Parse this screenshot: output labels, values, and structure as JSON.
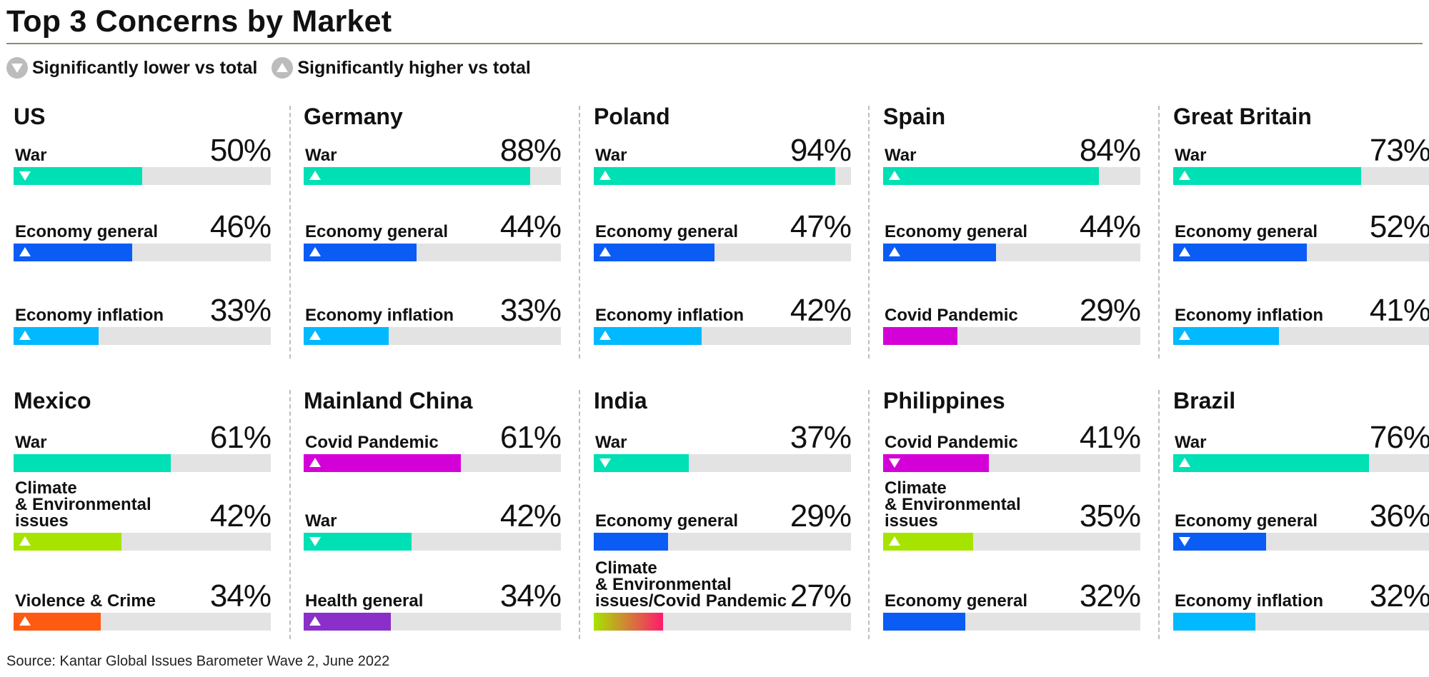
{
  "title": "Top 3 Concerns by Market",
  "legend": {
    "lower_label": "Significantly lower vs total",
    "higher_label": "Significantly higher vs total"
  },
  "source": "Source: Kantar Global Issues Barometer Wave 2, June 2022",
  "colors": {
    "war": "#00e0b5",
    "economy_general": "#0a5cf5",
    "economy_inflation": "#00b9ff",
    "covid": "#d400d8",
    "climate": "#a6e400",
    "violence": "#ff5a12",
    "health": "#8a2fc9",
    "track": "#e3e3e3",
    "icon_grey": "#bcbcbc"
  },
  "chart_data": {
    "type": "bar",
    "title": "Top 3 Concerns by Market",
    "xlim": [
      0,
      100
    ],
    "unit": "%",
    "legend": [
      "Significantly lower vs total",
      "Significantly higher vs total"
    ],
    "markets": [
      {
        "name": "US",
        "items": [
          {
            "label": "War",
            "value": 50,
            "display": "50%",
            "color": "#00e0b5",
            "marker": "down"
          },
          {
            "label": "Economy general",
            "value": 46,
            "display": "46%",
            "color": "#0a5cf5",
            "marker": "up"
          },
          {
            "label": "Economy inflation",
            "value": 33,
            "display": "33%",
            "color": "#00b9ff",
            "marker": "up"
          }
        ]
      },
      {
        "name": "Germany",
        "items": [
          {
            "label": "War",
            "value": 88,
            "display": "88%",
            "color": "#00e0b5",
            "marker": "up"
          },
          {
            "label": "Economy general",
            "value": 44,
            "display": "44%",
            "color": "#0a5cf5",
            "marker": "up"
          },
          {
            "label": "Economy inflation",
            "value": 33,
            "display": "33%",
            "color": "#00b9ff",
            "marker": "up"
          }
        ]
      },
      {
        "name": "Poland",
        "items": [
          {
            "label": "War",
            "value": 94,
            "display": "94%",
            "color": "#00e0b5",
            "marker": "up"
          },
          {
            "label": "Economy general",
            "value": 47,
            "display": "47%",
            "color": "#0a5cf5",
            "marker": "up"
          },
          {
            "label": "Economy inflation",
            "value": 42,
            "display": "42%",
            "color": "#00b9ff",
            "marker": "up"
          }
        ]
      },
      {
        "name": "Spain",
        "items": [
          {
            "label": "War",
            "value": 84,
            "display": "84%",
            "color": "#00e0b5",
            "marker": "up"
          },
          {
            "label": "Economy general",
            "value": 44,
            "display": "44%",
            "color": "#0a5cf5",
            "marker": "up"
          },
          {
            "label": "Covid Pandemic",
            "value": 29,
            "display": "29%",
            "color": "#d400d8",
            "marker": "none"
          }
        ]
      },
      {
        "name": "Great Britain",
        "items": [
          {
            "label": "War",
            "value": 73,
            "display": "73%",
            "color": "#00e0b5",
            "marker": "up"
          },
          {
            "label": "Economy general",
            "value": 52,
            "display": "52%",
            "color": "#0a5cf5",
            "marker": "up"
          },
          {
            "label": "Economy inflation",
            "value": 41,
            "display": "41%",
            "color": "#00b9ff",
            "marker": "up"
          }
        ]
      },
      {
        "name": "Mexico",
        "items": [
          {
            "label": "War",
            "value": 61,
            "display": "61%",
            "color": "#00e0b5",
            "marker": "none"
          },
          {
            "label": "Climate\n& Environmental\nissues",
            "value": 42,
            "display": "42%",
            "color": "#a6e400",
            "marker": "up"
          },
          {
            "label": "Violence & Crime",
            "value": 34,
            "display": "34%",
            "color": "#ff5a12",
            "marker": "up"
          }
        ]
      },
      {
        "name": "Mainland China",
        "items": [
          {
            "label": "Covid Pandemic",
            "value": 61,
            "display": "61%",
            "color": "#d400d8",
            "marker": "up"
          },
          {
            "label": "War",
            "value": 42,
            "display": "42%",
            "color": "#00e0b5",
            "marker": "down"
          },
          {
            "label": "Health general",
            "value": 34,
            "display": "34%",
            "color": "#8a2fc9",
            "marker": "up"
          }
        ]
      },
      {
        "name": "India",
        "items": [
          {
            "label": "War",
            "value": 37,
            "display": "37%",
            "color": "#00e0b5",
            "marker": "down"
          },
          {
            "label": "Economy general",
            "value": 29,
            "display": "29%",
            "color": "#0a5cf5",
            "marker": "none"
          },
          {
            "label": "Climate\n& Environmental\nissues/Covid Pandemic",
            "value": 27,
            "display": "27%",
            "color": "#a6e400",
            "color2": "#ff1a6e",
            "marker": "none"
          }
        ]
      },
      {
        "name": "Philippines",
        "items": [
          {
            "label": "Covid Pandemic",
            "value": 41,
            "display": "41%",
            "color": "#d400d8",
            "marker": "down"
          },
          {
            "label": "Climate\n& Environmental\nissues",
            "value": 35,
            "display": "35%",
            "color": "#a6e400",
            "marker": "up"
          },
          {
            "label": "Economy general",
            "value": 32,
            "display": "32%",
            "color": "#0a5cf5",
            "marker": "none"
          }
        ]
      },
      {
        "name": "Brazil",
        "items": [
          {
            "label": "War",
            "value": 76,
            "display": "76%",
            "color": "#00e0b5",
            "marker": "up"
          },
          {
            "label": "Economy general",
            "value": 36,
            "display": "36%",
            "color": "#0a5cf5",
            "marker": "down"
          },
          {
            "label": "Economy inflation",
            "value": 32,
            "display": "32%",
            "color": "#00b9ff",
            "marker": "none"
          }
        ]
      }
    ]
  }
}
